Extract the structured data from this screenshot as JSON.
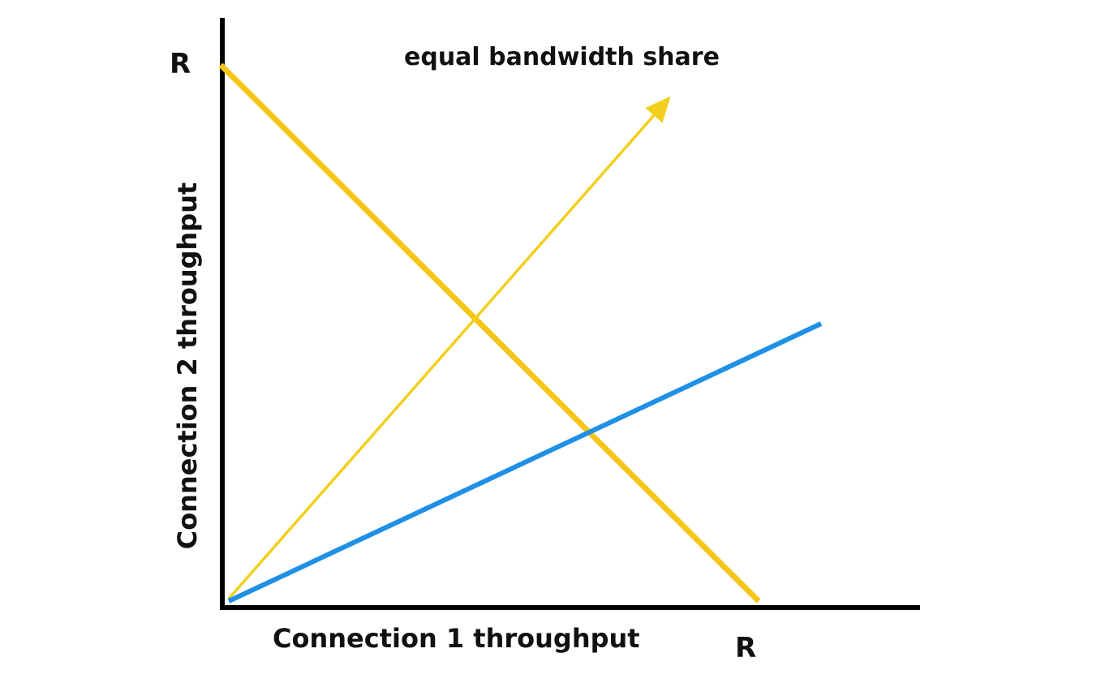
{
  "annotation": "equal bandwidth share",
  "y_axis_label": "Connection 2 throughput",
  "x_axis_label": "Connection 1 throughput",
  "y_max_label": "R",
  "x_max_label": "R",
  "colors": {
    "axes": "#000000",
    "full_utilization_line": "#f5c518",
    "equal_share_arrow": "#f2cf1d",
    "throughput_line": "#1e90e6",
    "text": "#111111"
  }
}
